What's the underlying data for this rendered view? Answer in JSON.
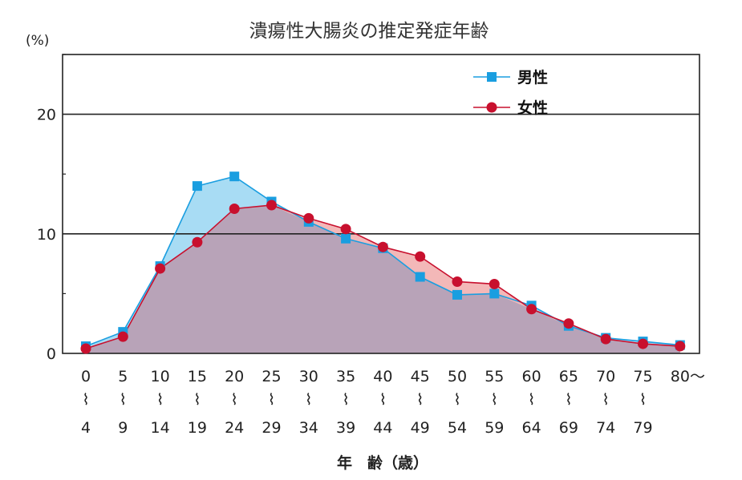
{
  "chart_data": {
    "type": "area",
    "title": "潰瘍性大腸炎の推定発症年齢",
    "unit_label": "(%)",
    "xlabel": "年　齢（歳）",
    "ylabel": "",
    "ylim": [
      0,
      25
    ],
    "yticks": [
      "0",
      "10",
      "20"
    ],
    "grid": "horizontal lines at 10 and 20",
    "legend_position": "top-right",
    "age_ranges": [
      {
        "from": "0",
        "to": "4"
      },
      {
        "from": "5",
        "to": "9"
      },
      {
        "from": "10",
        "to": "14"
      },
      {
        "from": "15",
        "to": "19"
      },
      {
        "from": "20",
        "to": "24"
      },
      {
        "from": "25",
        "to": "29"
      },
      {
        "from": "30",
        "to": "34"
      },
      {
        "from": "35",
        "to": "39"
      },
      {
        "from": "40",
        "to": "44"
      },
      {
        "from": "45",
        "to": "49"
      },
      {
        "from": "50",
        "to": "54"
      },
      {
        "from": "55",
        "to": "59"
      },
      {
        "from": "60",
        "to": "64"
      },
      {
        "from": "65",
        "to": "69"
      },
      {
        "from": "70",
        "to": "74"
      },
      {
        "from": "75",
        "to": "79"
      },
      {
        "from": "80～",
        "to": ""
      }
    ],
    "range_separator": "⌇",
    "series": [
      {
        "name": "男性",
        "marker": "square",
        "line_color": "#1a9ee0",
        "fill_color": "#a8dcf4",
        "values": [
          0.6,
          1.8,
          7.3,
          14.0,
          14.8,
          12.7,
          11.0,
          9.6,
          8.8,
          6.4,
          4.9,
          5.0,
          4.0,
          2.3,
          1.3,
          1.0,
          0.7
        ]
      },
      {
        "name": "女性",
        "marker": "circle",
        "line_color": "#c8102e",
        "fill_color": "#f3b8b8",
        "values": [
          0.4,
          1.4,
          7.1,
          9.3,
          12.1,
          12.4,
          11.3,
          10.4,
          8.9,
          8.1,
          6.0,
          5.8,
          3.7,
          2.5,
          1.2,
          0.8,
          0.6
        ]
      }
    ],
    "overlap_color": "#b8a3b8"
  }
}
